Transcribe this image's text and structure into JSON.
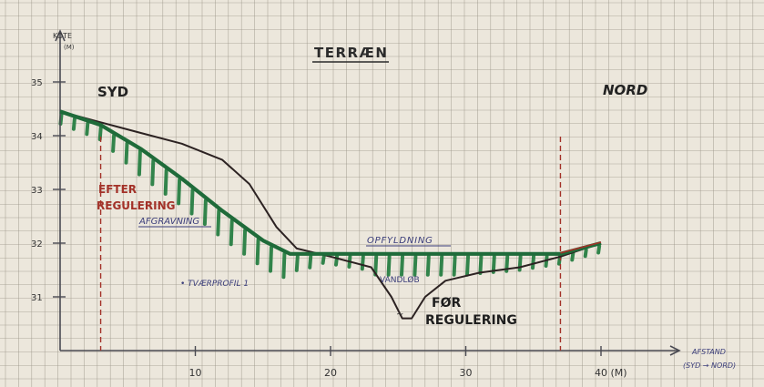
{
  "sheet": {
    "title": "TERRÆN",
    "y_axis_label_line1": "KOTE",
    "y_axis_label_line2": "(M)",
    "left_label": "SYD",
    "right_label": "NORD",
    "x_axis_label_line1": "AFSTAND",
    "x_axis_label_line2": "(SYD → NORD)",
    "annotation_after_line1": "EFTER",
    "annotation_after_line2": "REGULERING",
    "annotation_before_line1": "FØR",
    "annotation_before_line2": "REGULERING",
    "label_cut": "AFGRAVNING",
    "label_fill": "OPFYLDNING",
    "label_stream": "VANDLØB",
    "label_profile": "• TVÆRPROFIL 1",
    "water_symbol": "~"
  },
  "colors": {
    "paper": "#ece7dc",
    "grid": "#9a9488",
    "axis": "#4a4a52",
    "after_line": "#1f6b3a",
    "before_line": "#2c2222",
    "hatch": "#1e7a3c",
    "red": "#a33128",
    "blue_ink": "#3a3d7a"
  },
  "chart_data": {
    "type": "line",
    "xlabel": "AFSTAND (SYD → NORD)",
    "ylabel": "KOTE (M)",
    "xlim": [
      0,
      47
    ],
    "ylim": [
      30,
      35.3
    ],
    "x_ticks": [
      10,
      20,
      30,
      40
    ],
    "x_tick_labels": [
      "10",
      "20",
      "30",
      "40 (M)"
    ],
    "y_ticks": [
      31,
      32,
      33,
      34,
      35
    ],
    "y_tick_labels": [
      "31",
      "32",
      "33",
      "34",
      "35"
    ],
    "grid": true,
    "series": [
      {
        "name": "EFTER REGULERING",
        "x": [
          0,
          3,
          6,
          9,
          12,
          15,
          17,
          20,
          25,
          30,
          37,
          40
        ],
        "y": [
          34.45,
          34.2,
          33.75,
          33.2,
          32.6,
          32.05,
          31.8,
          31.8,
          31.8,
          31.8,
          31.8,
          32.0
        ]
      },
      {
        "name": "FØR REGULERING",
        "x": [
          0,
          3,
          6,
          9,
          12,
          14,
          16,
          17.5,
          20,
          23,
          24.5,
          25.3,
          26,
          27,
          28.5,
          31,
          34,
          37,
          40
        ],
        "y": [
          34.45,
          34.25,
          34.05,
          33.85,
          33.55,
          33.1,
          32.3,
          31.9,
          31.75,
          31.55,
          31.0,
          30.6,
          30.6,
          31.0,
          31.3,
          31.45,
          31.55,
          31.75,
          32.0
        ]
      }
    ],
    "vertical_markers_x": [
      3,
      37
    ]
  }
}
